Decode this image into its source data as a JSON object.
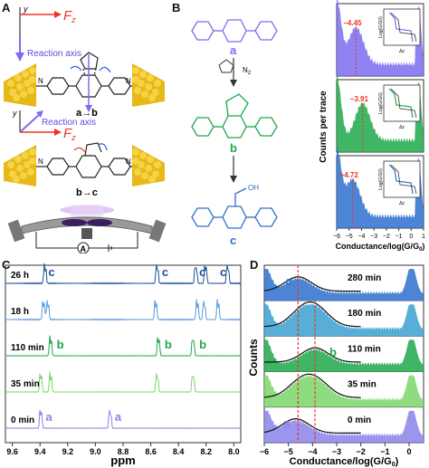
{
  "panels": {
    "a": {
      "letter": "A",
      "axis_y": "y",
      "axis_x": "x",
      "force": "F",
      "force_sub": "z",
      "reaction_axis": "Reaction axis",
      "label_top": "a→b",
      "label_bottom": "b→c",
      "circuit_label": "A",
      "n_left": "N",
      "n_right": "N"
    },
    "b": {
      "letter": "B",
      "mol_a": "a",
      "mol_b": "b",
      "mol_c": "c",
      "n2": "N",
      "n2_sub": "2",
      "oh": "OH",
      "y_axis_label": "Counts per trace",
      "x_axis_label": "Conductance/log(G/G",
      "x_axis_sub": "0",
      "x_axis_tail": ")",
      "peaks": [
        "−4.45",
        "−3.91",
        "−4.72"
      ],
      "inset_ylabel": "Log(G/G",
      "inset_ylabel_sub": "0",
      "inset_ylabel_tail": ")",
      "inset_xlabel": "Δz",
      "ticks": [
        "−6",
        "−5",
        "−4",
        "−3",
        "−2",
        "−1",
        "0",
        "1"
      ],
      "colors": {
        "a": "#7b6cf0",
        "b": "#1fa84a",
        "c": "#2e6fcf"
      }
    },
    "c": {
      "letter": "C",
      "x_label": "ppm",
      "ticks": [
        "9.6",
        "9.4",
        "9.2",
        "9.0",
        "8.8",
        "8.6",
        "8.4",
        "8.2",
        "8.0"
      ],
      "traces": [
        {
          "time": "26 h",
          "labels": [
            "c",
            "c",
            "c",
            "c"
          ],
          "color": "#1f4f9c"
        },
        {
          "time": "18 h",
          "labels": [],
          "color": "#5a9be0"
        },
        {
          "time": "110 min",
          "labels": [
            "b",
            "b",
            "b"
          ],
          "color": "#1fa84a"
        },
        {
          "time": "35 min",
          "labels": [],
          "color": "#7bd66a"
        },
        {
          "time": "0 min",
          "labels": [
            "a",
            "a"
          ],
          "color": "#8a82ea"
        }
      ]
    },
    "d": {
      "letter": "D",
      "y_label": "Counts",
      "x_label": "Conductance/log(G/G",
      "x_label_sub": "0",
      "x_label_tail": ")",
      "ticks": [
        "−6",
        "−5",
        "−4",
        "−3",
        "−2",
        "−1",
        "0"
      ],
      "rows": [
        {
          "time": "280 min",
          "label": "c",
          "color": "#2e6fcf"
        },
        {
          "time": "180 min",
          "label": "",
          "color": "#3aa0d0"
        },
        {
          "time": "110 min",
          "label": "b",
          "color": "#1fa84a"
        },
        {
          "time": "35 min",
          "label": "",
          "color": "#7bd66a"
        },
        {
          "time": "0 min",
          "label": "a",
          "color": "#8a82ea"
        }
      ]
    }
  }
}
